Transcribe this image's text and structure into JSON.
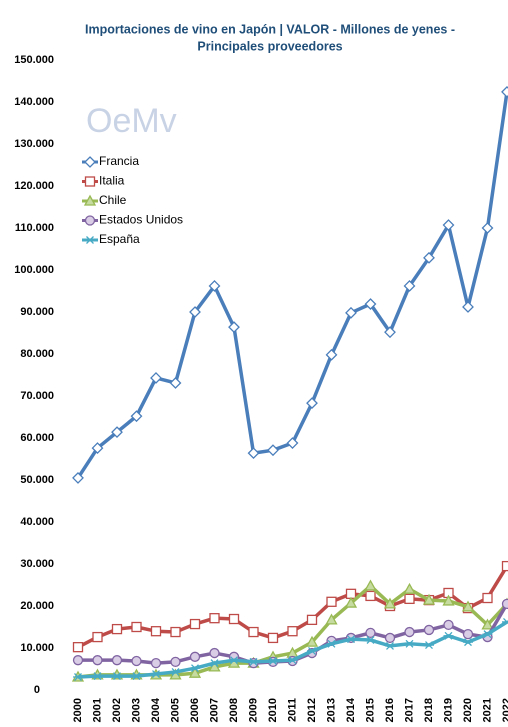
{
  "chart_data": {
    "type": "line",
    "title": "Importaciones de vino en Japón | VALOR - Millones de yenes -",
    "subtitle": "Principales proveedores",
    "logo": "OeMv",
    "categories": [
      "2000",
      "2001",
      "2002",
      "2003",
      "2004",
      "2005",
      "2006",
      "2007",
      "2008",
      "2009",
      "2010",
      "2011",
      "2012",
      "2013",
      "2014",
      "2015",
      "2016",
      "2017",
      "2018",
      "2019",
      "2020",
      "2021",
      "2022"
    ],
    "series": [
      {
        "name": "Francia",
        "color": "#4a7ebb",
        "marker": "diamond",
        "values": [
          50500,
          57600,
          61400,
          65200,
          74300,
          73100,
          90000,
          96200,
          86400,
          56400,
          57100,
          58800,
          68300,
          79800,
          89800,
          91900,
          85200,
          96200,
          102900,
          110700,
          91200,
          110000,
          142400
        ]
      },
      {
        "name": "Italia",
        "color": "#be4b48",
        "marker": "square",
        "values": [
          10200,
          12600,
          14500,
          15000,
          14000,
          13800,
          15700,
          17100,
          16900,
          13800,
          12400,
          14000,
          16700,
          21000,
          22900,
          22400,
          20000,
          21700,
          21400,
          23100,
          19500,
          21900,
          29500
        ]
      },
      {
        "name": "Chile",
        "color": "#98b954",
        "marker": "triangle",
        "values": [
          3100,
          3600,
          3600,
          3600,
          3600,
          3600,
          4000,
          5500,
          6400,
          6400,
          7900,
          8800,
          11400,
          16700,
          20700,
          24800,
          20500,
          24000,
          21400,
          21200,
          19800,
          15500,
          20500
        ]
      },
      {
        "name": "Estados Unidos",
        "color": "#8064a2",
        "marker": "circle",
        "values": [
          7100,
          7100,
          7100,
          6900,
          6400,
          6700,
          7900,
          8800,
          7900,
          6400,
          6700,
          6900,
          8800,
          11700,
          12400,
          13600,
          12400,
          13800,
          14300,
          15500,
          13300,
          12600,
          20500
        ]
      },
      {
        "name": "España",
        "color": "#46aac5",
        "marker": "star",
        "values": [
          3100,
          3300,
          3300,
          3300,
          3800,
          4300,
          5200,
          6400,
          7100,
          6700,
          6900,
          7100,
          9300,
          11000,
          12100,
          11900,
          10500,
          11000,
          10700,
          12900,
          11400,
          13300,
          16200
        ]
      }
    ],
    "ylim": [
      0,
      150000
    ],
    "yticks": [
      0,
      {
        "value": 10000,
        "label": "10.000"
      },
      {
        "value": 20000,
        "label": "20.000"
      },
      {
        "value": 30000,
        "label": "30.000"
      },
      {
        "value": 40000,
        "label": "40.000"
      },
      {
        "value": 50000,
        "label": "50.000"
      },
      {
        "value": 60000,
        "label": "60.000"
      },
      {
        "value": 70000,
        "label": "70.000"
      },
      {
        "value": 80000,
        "label": "80.000"
      },
      {
        "value": 90000,
        "label": "90.000"
      },
      {
        "value": 100000,
        "label": "100.000"
      },
      {
        "value": 110000,
        "label": "110.000"
      },
      {
        "value": 120000,
        "label": "120.000"
      },
      {
        "value": 130000,
        "label": "130.000"
      },
      {
        "value": 140000,
        "label": "140.000"
      },
      {
        "value": 150000,
        "label": "150.000"
      }
    ],
    "grid": false,
    "legend": "upper left"
  }
}
